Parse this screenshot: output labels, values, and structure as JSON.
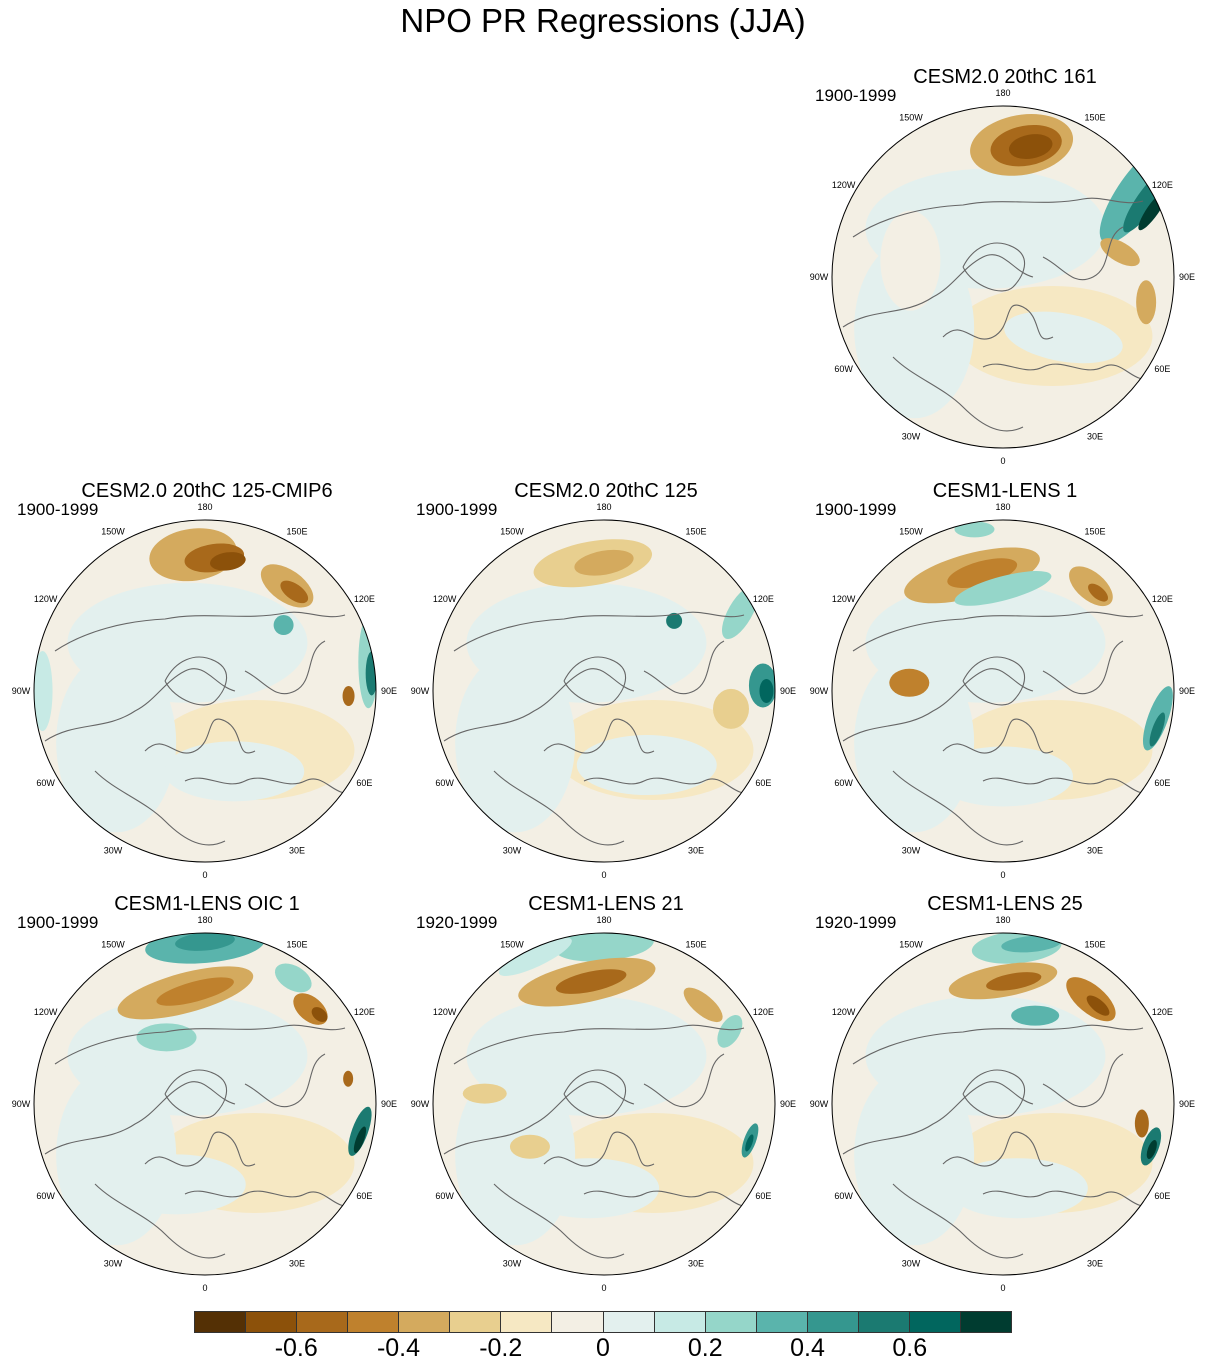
{
  "title": "NPO PR Regressions (JJA)",
  "lon_labels": [
    "180",
    "150E",
    "120E",
    "90E",
    "60E",
    "30E",
    "0",
    "30W",
    "60W",
    "90W",
    "120W",
    "150W"
  ],
  "panels": [
    {
      "title": "CESM2.0 20thC 161",
      "period": "1900-1999"
    },
    {
      "title": "CESM2.0 20thC 125-CMIP6",
      "period": "1900-1999"
    },
    {
      "title": "CESM2.0 20thC 125",
      "period": "1900-1999"
    },
    {
      "title": "CESM1-LENS 1",
      "period": "1900-1999"
    },
    {
      "title": "CESM1-LENS OIC 1",
      "period": "1900-1999"
    },
    {
      "title": "CESM1-LENS 21",
      "period": "1920-1999"
    },
    {
      "title": "CESM1-LENS 25",
      "period": "1920-1999"
    }
  ],
  "colorbar": {
    "colors": [
      "#543005",
      "#8c510a",
      "#a8691b",
      "#bf812d",
      "#d4aa5e",
      "#e8cf8f",
      "#f6e8c3",
      "#f3efe4",
      "#e3f0ee",
      "#c7eae5",
      "#95d6c9",
      "#5ab4ac",
      "#35978f",
      "#1b7a71",
      "#01665e",
      "#003c30"
    ],
    "labels": [
      "-0.6",
      "-0.4",
      "-0.2",
      "0",
      "0.2",
      "0.4",
      "0.6"
    ]
  }
}
